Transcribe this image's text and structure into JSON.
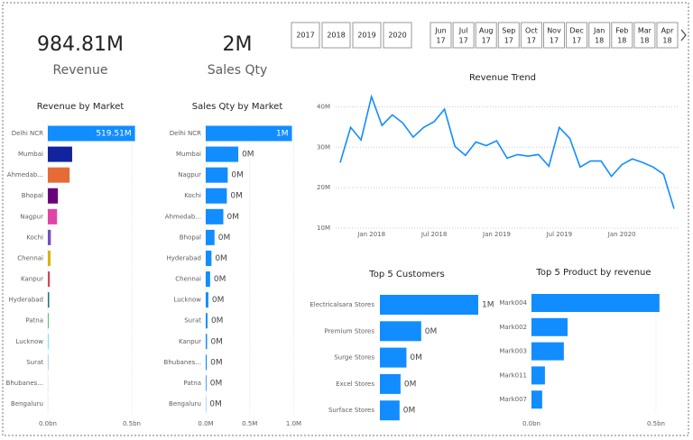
{
  "cards": [
    {
      "value": "984.81M",
      "label": "Revenue"
    },
    {
      "value": "2M",
      "label": "Sales Qty"
    }
  ],
  "year_slicer": [
    "2017",
    "2018",
    "2019",
    "2020"
  ],
  "month_slicer": [
    {
      "month": "Jun",
      "year": "17"
    },
    {
      "month": "Jul",
      "year": "17"
    },
    {
      "month": "Aug",
      "year": "17"
    },
    {
      "month": "Sep",
      "year": "17"
    },
    {
      "month": "Oct",
      "year": "17"
    },
    {
      "month": "Nov",
      "year": "17"
    },
    {
      "month": "Dec",
      "year": "17"
    },
    {
      "month": "Jan",
      "year": "18"
    },
    {
      "month": "Feb",
      "year": "18"
    },
    {
      "month": "Mar",
      "year": "18"
    },
    {
      "month": "Apr",
      "year": "18"
    }
  ],
  "chart_data": [
    {
      "type": "bar",
      "orientation": "horizontal",
      "title": "Revenue by Market",
      "categories": [
        "Delhi NCR",
        "Mumbai",
        "Ahmedab...",
        "Bhopal",
        "Nagpur",
        "Kochi",
        "Chennai",
        "Kanpur",
        "Hyderabad",
        "Patna",
        "Lucknow",
        "Surat",
        "Bhubanes...",
        "Bengaluru"
      ],
      "values": [
        0.51951,
        0.145,
        0.13,
        0.06,
        0.055,
        0.018,
        0.016,
        0.012,
        0.008,
        0.004,
        0.003,
        0.002,
        0.001,
        0.0003
      ],
      "value_labels": [
        "519.51M",
        null,
        null,
        null,
        null,
        null,
        null,
        null,
        null,
        null,
        null,
        null,
        null,
        null
      ],
      "colors": [
        "#118DFF",
        "#12239E",
        "#E66C37",
        "#6B007B",
        "#E044A7",
        "#744EC2",
        "#D9B300",
        "#D64550",
        "#197278",
        "#1AAB40",
        "#15C6F4",
        "#4092FF",
        "#FFA058",
        "#BE5DC9"
      ],
      "xlim": [
        0,
        0.52
      ],
      "xticks": [
        {
          "value": 0,
          "label": "0.0bn"
        },
        {
          "value": 0.5,
          "label": "0.5bn"
        }
      ],
      "grid": true
    },
    {
      "type": "bar",
      "orientation": "horizontal",
      "title": "Sales Qty by Market",
      "categories": [
        "Delhi NCR",
        "Mumbai",
        "Nagpur",
        "Kochi",
        "Ahmedab...",
        "Bhopal",
        "Hyderabad",
        "Chennai",
        "Lucknow",
        "Surat",
        "Kanpur",
        "Bhubanes...",
        "Patna",
        "Bengaluru"
      ],
      "values": [
        0.98,
        0.37,
        0.25,
        0.24,
        0.2,
        0.1,
        0.065,
        0.05,
        0.03,
        0.02,
        0.015,
        0.012,
        0.008,
        0.003
      ],
      "value_labels": [
        "1M",
        "0M",
        "0M",
        "0M",
        "0M",
        "0M",
        "0M",
        "0M",
        "0M",
        "0M",
        "0M",
        "0M",
        "0M",
        "0M"
      ],
      "color": "#118DFF",
      "xlim": [
        0,
        1
      ],
      "xticks": [
        {
          "value": 0,
          "label": "0.0M"
        },
        {
          "value": 0.5,
          "label": "0.5M"
        },
        {
          "value": 1,
          "label": "1.0M"
        }
      ],
      "grid": true
    },
    {
      "type": "line",
      "title": "Revenue Trend",
      "x": [
        "2017-10",
        "2017-11",
        "2017-12",
        "2018-01",
        "2018-02",
        "2018-03",
        "2018-04",
        "2018-05",
        "2018-06",
        "2018-07",
        "2018-08",
        "2018-09",
        "2018-10",
        "2018-11",
        "2018-12",
        "2019-01",
        "2019-02",
        "2019-03",
        "2019-04",
        "2019-05",
        "2019-06",
        "2019-07",
        "2019-08",
        "2019-09",
        "2019-10",
        "2019-11",
        "2019-12",
        "2020-01",
        "2020-02",
        "2020-03",
        "2020-04",
        "2020-05",
        "2020-06"
      ],
      "values": [
        26.2,
        34.9,
        31.8,
        42.5,
        35.4,
        38.0,
        36.0,
        32.5,
        34.9,
        36.3,
        39.4,
        30.2,
        28.0,
        31.3,
        30.4,
        31.6,
        27.3,
        28.2,
        27.8,
        28.2,
        25.3,
        34.9,
        32.2,
        25.1,
        26.6,
        26.6,
        22.8,
        25.7,
        27.1,
        26.2,
        25.1,
        23.3,
        14.8
      ],
      "color": "#118DFF",
      "xlim": [
        "2017-10",
        "2020-06"
      ],
      "xticks": [
        {
          "value": "2018-01",
          "label": "Jan 2018"
        },
        {
          "value": "2018-07",
          "label": "Jul 2018"
        },
        {
          "value": "2019-01",
          "label": "Jan 2019"
        },
        {
          "value": "2019-07",
          "label": "Jul 2019"
        },
        {
          "value": "2020-01",
          "label": "Jan 2020"
        }
      ],
      "ylim": [
        10,
        43
      ],
      "yticks": [
        {
          "value": 10,
          "label": "10M"
        },
        {
          "value": 20,
          "label": "20M"
        },
        {
          "value": 30,
          "label": "30M"
        },
        {
          "value": 40,
          "label": "40M"
        }
      ],
      "grid": true
    },
    {
      "type": "bar",
      "orientation": "horizontal",
      "title": "Top 5 Customers",
      "categories": [
        "Electricalsara Stores",
        "Premium Stores",
        "Surge Stores",
        "Excel Stores",
        "Surface Stores"
      ],
      "values": [
        1.0,
        0.42,
        0.27,
        0.21,
        0.2
      ],
      "value_labels": [
        "1M",
        "0M",
        "0M",
        "0M",
        "0M"
      ],
      "color": "#118DFF"
    },
    {
      "type": "bar",
      "orientation": "horizontal",
      "title": "Top 5 Product by revenue",
      "categories": [
        "Mark004",
        "Mark002",
        "Mark003",
        "Mark011",
        "Mark007"
      ],
      "values": [
        0.514,
        0.145,
        0.13,
        0.054,
        0.043
      ],
      "color": "#118DFF",
      "xlim": [
        0,
        0.52
      ],
      "xticks": [
        {
          "value": 0,
          "label": "0.0bn"
        },
        {
          "value": 0.5,
          "label": "0.5bn"
        }
      ],
      "grid": true
    }
  ]
}
